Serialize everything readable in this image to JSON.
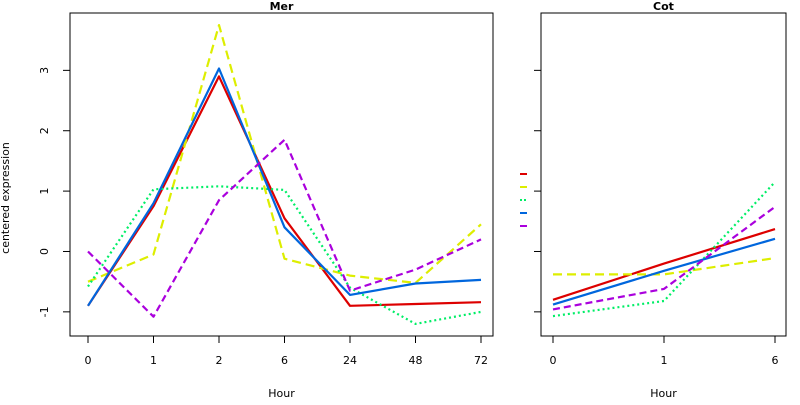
{
  "figure": {
    "ylabel": "centered expression"
  },
  "chart_data": [
    {
      "type": "line",
      "title": "Mer",
      "xlabel": "Hour",
      "ylabel": "centered expression",
      "categories": [
        "0",
        "1",
        "2",
        "6",
        "24",
        "48",
        "72"
      ],
      "ylim": [
        -1.4,
        3.95
      ],
      "yticks": [
        -1,
        0,
        1,
        2,
        3
      ],
      "grid": false,
      "series": [
        {
          "color": "#dd0000",
          "dash": "solid",
          "values": [
            -0.9,
            0.75,
            2.9,
            0.55,
            -0.9,
            -0.87,
            -0.84
          ]
        },
        {
          "color": "#ddee00",
          "dash": "long-dash",
          "values": [
            -0.5,
            -0.05,
            3.75,
            -0.12,
            -0.4,
            -0.52,
            0.45
          ]
        },
        {
          "color": "#00ee66",
          "dash": "dotted",
          "values": [
            -0.58,
            1.03,
            1.08,
            1.02,
            -0.6,
            -1.2,
            -1.0
          ]
        },
        {
          "color": "#0066dd",
          "dash": "solid",
          "values": [
            -0.9,
            0.8,
            3.03,
            0.4,
            -0.72,
            -0.53,
            -0.47
          ]
        },
        {
          "color": "#aa00dd",
          "dash": "dashed",
          "values": [
            0.0,
            -1.08,
            0.85,
            1.85,
            -0.65,
            -0.3,
            0.2
          ]
        }
      ]
    },
    {
      "type": "line",
      "title": "Cot",
      "xlabel": "Hour",
      "categories": [
        "0",
        "1",
        "6"
      ],
      "ylim": [
        -1.4,
        3.95
      ],
      "yticks": [
        -1,
        0,
        1,
        2,
        3
      ],
      "grid": false,
      "series": [
        {
          "color": "#dd0000",
          "dash": "solid",
          "values": [
            -0.8,
            -0.2,
            0.37
          ]
        },
        {
          "color": "#ddee00",
          "dash": "long-dash",
          "values": [
            -0.38,
            -0.38,
            -0.11
          ]
        },
        {
          "color": "#00ee66",
          "dash": "dotted",
          "values": [
            -1.07,
            -0.82,
            1.15
          ]
        },
        {
          "color": "#0066dd",
          "dash": "solid",
          "values": [
            -0.88,
            -0.32,
            0.21
          ]
        },
        {
          "color": "#aa00dd",
          "dash": "dashed",
          "values": [
            -0.96,
            -0.62,
            0.74
          ]
        }
      ]
    }
  ],
  "legend": {
    "placement": "between-panels",
    "colors": [
      "#dd0000",
      "#ddee00",
      "#00ee66",
      "#0066dd",
      "#aa00dd"
    ],
    "dashes": [
      "solid",
      "long-dash",
      "dotted",
      "solid",
      "dashed"
    ]
  }
}
